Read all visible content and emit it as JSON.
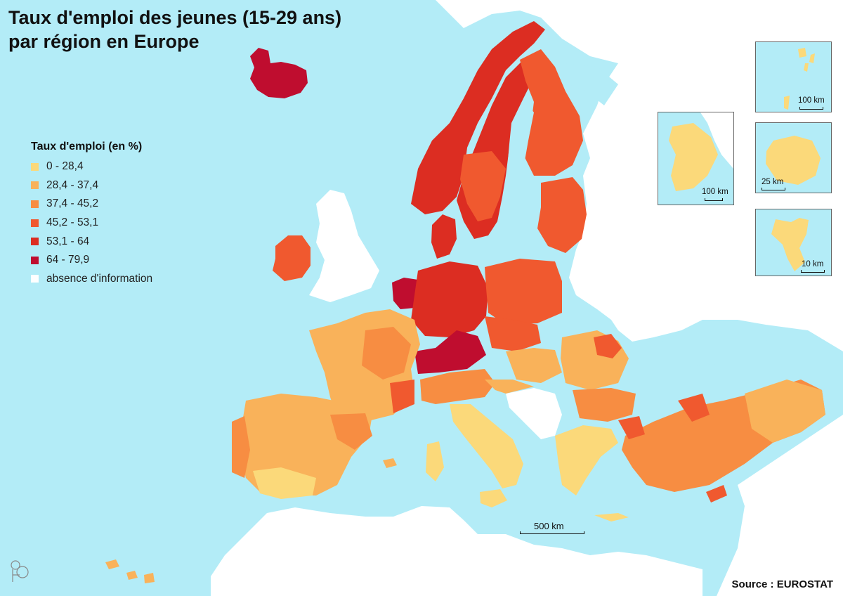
{
  "title": {
    "line1": "Taux d'emploi des jeunes (15-29 ans)",
    "line2": "par région en Europe"
  },
  "legend": {
    "title": "Taux d'emploi (en %)",
    "items": [
      {
        "label": "0 - 28,4",
        "color": "#fbd97a"
      },
      {
        "label": "28,4 - 37,4",
        "color": "#f9b25a"
      },
      {
        "label": "37,4 - 45,2",
        "color": "#f78d42"
      },
      {
        "label": "45,2 - 53,1",
        "color": "#f0592f"
      },
      {
        "label": "53,1 - 64",
        "color": "#dc2d22"
      },
      {
        "label": "64 - 79,9",
        "color": "#bf0d2f"
      },
      {
        "label": "absence d'information",
        "color": "#ffffff"
      }
    ]
  },
  "insets": [
    {
      "scale": "100 km"
    },
    {
      "scale": "100 km"
    },
    {
      "scale": "25 km"
    },
    {
      "scale": "10 km"
    }
  ],
  "main_scale": "500 km",
  "source": "Source : EUROSTAT",
  "colors": {
    "sea": "#b3ecf7",
    "no_data_land": "#ffffff"
  }
}
